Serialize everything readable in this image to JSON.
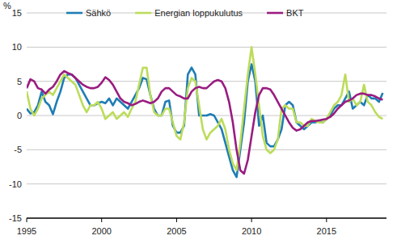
{
  "chart_data": {
    "type": "line",
    "y_label": "%",
    "legend": "top",
    "grid": true,
    "xlim": [
      1995,
      2019
    ],
    "xticks": [
      1995,
      2000,
      2005,
      2010,
      2015
    ],
    "ylim": [
      -15,
      15
    ],
    "yticks": [
      -15,
      -10,
      -5,
      0,
      5,
      10,
      15
    ],
    "x": [
      1995,
      1995.25,
      1995.5,
      1995.75,
      1996,
      1996.25,
      1996.5,
      1996.75,
      1997,
      1997.25,
      1997.5,
      1997.75,
      1998,
      1998.25,
      1998.5,
      1998.75,
      1999,
      1999.25,
      1999.5,
      1999.75,
      2000,
      2000.25,
      2000.5,
      2000.75,
      2001,
      2001.25,
      2001.5,
      2001.75,
      2002,
      2002.25,
      2002.5,
      2002.75,
      2003,
      2003.25,
      2003.5,
      2003.75,
      2004,
      2004.25,
      2004.5,
      2004.75,
      2005,
      2005.25,
      2005.5,
      2005.75,
      2006,
      2006.25,
      2006.5,
      2006.75,
      2007,
      2007.25,
      2007.5,
      2007.75,
      2008,
      2008.25,
      2008.5,
      2008.75,
      2009,
      2009.25,
      2009.5,
      2009.75,
      2010,
      2010.25,
      2010.5,
      2010.75,
      2011,
      2011.25,
      2011.5,
      2011.75,
      2012,
      2012.25,
      2012.5,
      2012.75,
      2013,
      2013.25,
      2013.5,
      2013.75,
      2014,
      2014.25,
      2014.5,
      2014.75,
      2015,
      2015.25,
      2015.5,
      2015.75,
      2016,
      2016.25,
      2016.5,
      2016.75,
      2017,
      2017.25,
      2017.5,
      2017.75,
      2018,
      2018.25,
      2018.5,
      2018.75
    ],
    "series": [
      {
        "name": "Sähkö",
        "color": "#1f7db5",
        "values": [
          1.0,
          0.3,
          0.5,
          1.5,
          3.5,
          2.0,
          1.5,
          0.2,
          2.0,
          3.5,
          5.5,
          6.0,
          6.0,
          5.5,
          4.5,
          3.5,
          2.5,
          1.5,
          1.5,
          1.8,
          2.0,
          1.8,
          2.5,
          1.5,
          2.5,
          2.0,
          1.5,
          1.0,
          2.0,
          3.0,
          4.0,
          5.5,
          5.3,
          3.0,
          1.0,
          0.0,
          0.0,
          2.0,
          2.2,
          -1.5,
          -2.5,
          -2.5,
          -1.5,
          6.0,
          7.0,
          6.0,
          0.0,
          0.0,
          0.0,
          0.2,
          0.0,
          -1.0,
          -2.0,
          -4.0,
          -6.0,
          -8.0,
          -9.0,
          -5.0,
          -1.0,
          5.0,
          7.5,
          5.0,
          -1.5,
          0.0,
          -4.0,
          -4.5,
          -4.5,
          -3.5,
          -2.0,
          1.5,
          2.0,
          1.5,
          -1.0,
          -1.5,
          -2.0,
          -1.5,
          -1.0,
          -1.0,
          -0.8,
          -1.0,
          -0.5,
          0.0,
          1.0,
          1.5,
          1.5,
          2.5,
          3.5,
          1.0,
          1.5,
          2.0,
          1.5,
          3.0,
          2.5,
          2.5,
          2.0,
          3.3
        ]
      },
      {
        "name": "Energian loppukulutus",
        "color": "#bcdc5a",
        "values": [
          3.5,
          1.0,
          0.0,
          1.0,
          2.5,
          3.0,
          3.5,
          3.0,
          4.0,
          5.0,
          6.0,
          5.5,
          5.0,
          4.5,
          3.0,
          1.5,
          0.5,
          1.5,
          1.5,
          2.0,
          1.0,
          -0.5,
          0.0,
          0.5,
          -0.5,
          0.0,
          0.5,
          -0.2,
          1.0,
          2.0,
          4.5,
          7.0,
          7.0,
          3.0,
          0.5,
          0.0,
          0.0,
          1.0,
          1.0,
          -1.0,
          -3.0,
          -3.5,
          -1.0,
          4.0,
          5.5,
          5.0,
          1.5,
          -2.0,
          -3.5,
          -2.5,
          -2.0,
          -1.5,
          -0.5,
          -2.0,
          -5.0,
          -7.0,
          -8.0,
          -4.0,
          1.0,
          6.0,
          10.0,
          6.0,
          1.5,
          -3.0,
          -5.0,
          -5.5,
          -5.0,
          -3.5,
          1.0,
          1.5,
          1.0,
          1.0,
          -1.0,
          -1.0,
          -1.5,
          -1.5,
          -0.5,
          -0.8,
          -1.0,
          -1.0,
          -0.5,
          0.5,
          1.5,
          2.0,
          3.0,
          6.0,
          2.0,
          2.5,
          1.5,
          2.0,
          4.5,
          2.0,
          1.5,
          0.5,
          -0.2,
          -0.5
        ]
      },
      {
        "name": "BKT",
        "color": "#9a1c80",
        "values": [
          4.0,
          5.3,
          5.0,
          4.0,
          3.8,
          3.2,
          3.8,
          4.2,
          5.0,
          6.0,
          6.5,
          6.2,
          6.0,
          5.5,
          5.0,
          4.5,
          4.2,
          4.0,
          4.0,
          4.2,
          4.8,
          5.6,
          5.2,
          4.5,
          3.5,
          2.5,
          2.0,
          1.8,
          1.5,
          1.7,
          2.0,
          2.2,
          2.0,
          1.8,
          2.0,
          2.5,
          3.5,
          4.0,
          4.0,
          3.5,
          3.0,
          2.8,
          2.5,
          2.5,
          3.5,
          4.0,
          4.2,
          4.0,
          4.0,
          4.5,
          5.0,
          5.2,
          5.0,
          4.0,
          2.0,
          -1.0,
          -5.0,
          -8.0,
          -8.5,
          -6.5,
          -3.0,
          0.5,
          3.0,
          4.0,
          4.0,
          3.8,
          3.0,
          2.0,
          1.0,
          0.0,
          -1.0,
          -1.8,
          -2.2,
          -2.0,
          -1.5,
          -1.0,
          -0.8,
          -0.8,
          -0.7,
          -0.6,
          -0.5,
          -0.2,
          0.3,
          1.0,
          1.5,
          2.0,
          2.2,
          2.5,
          3.0,
          3.2,
          3.2,
          3.0,
          3.0,
          2.8,
          2.5,
          2.3
        ]
      }
    ]
  }
}
